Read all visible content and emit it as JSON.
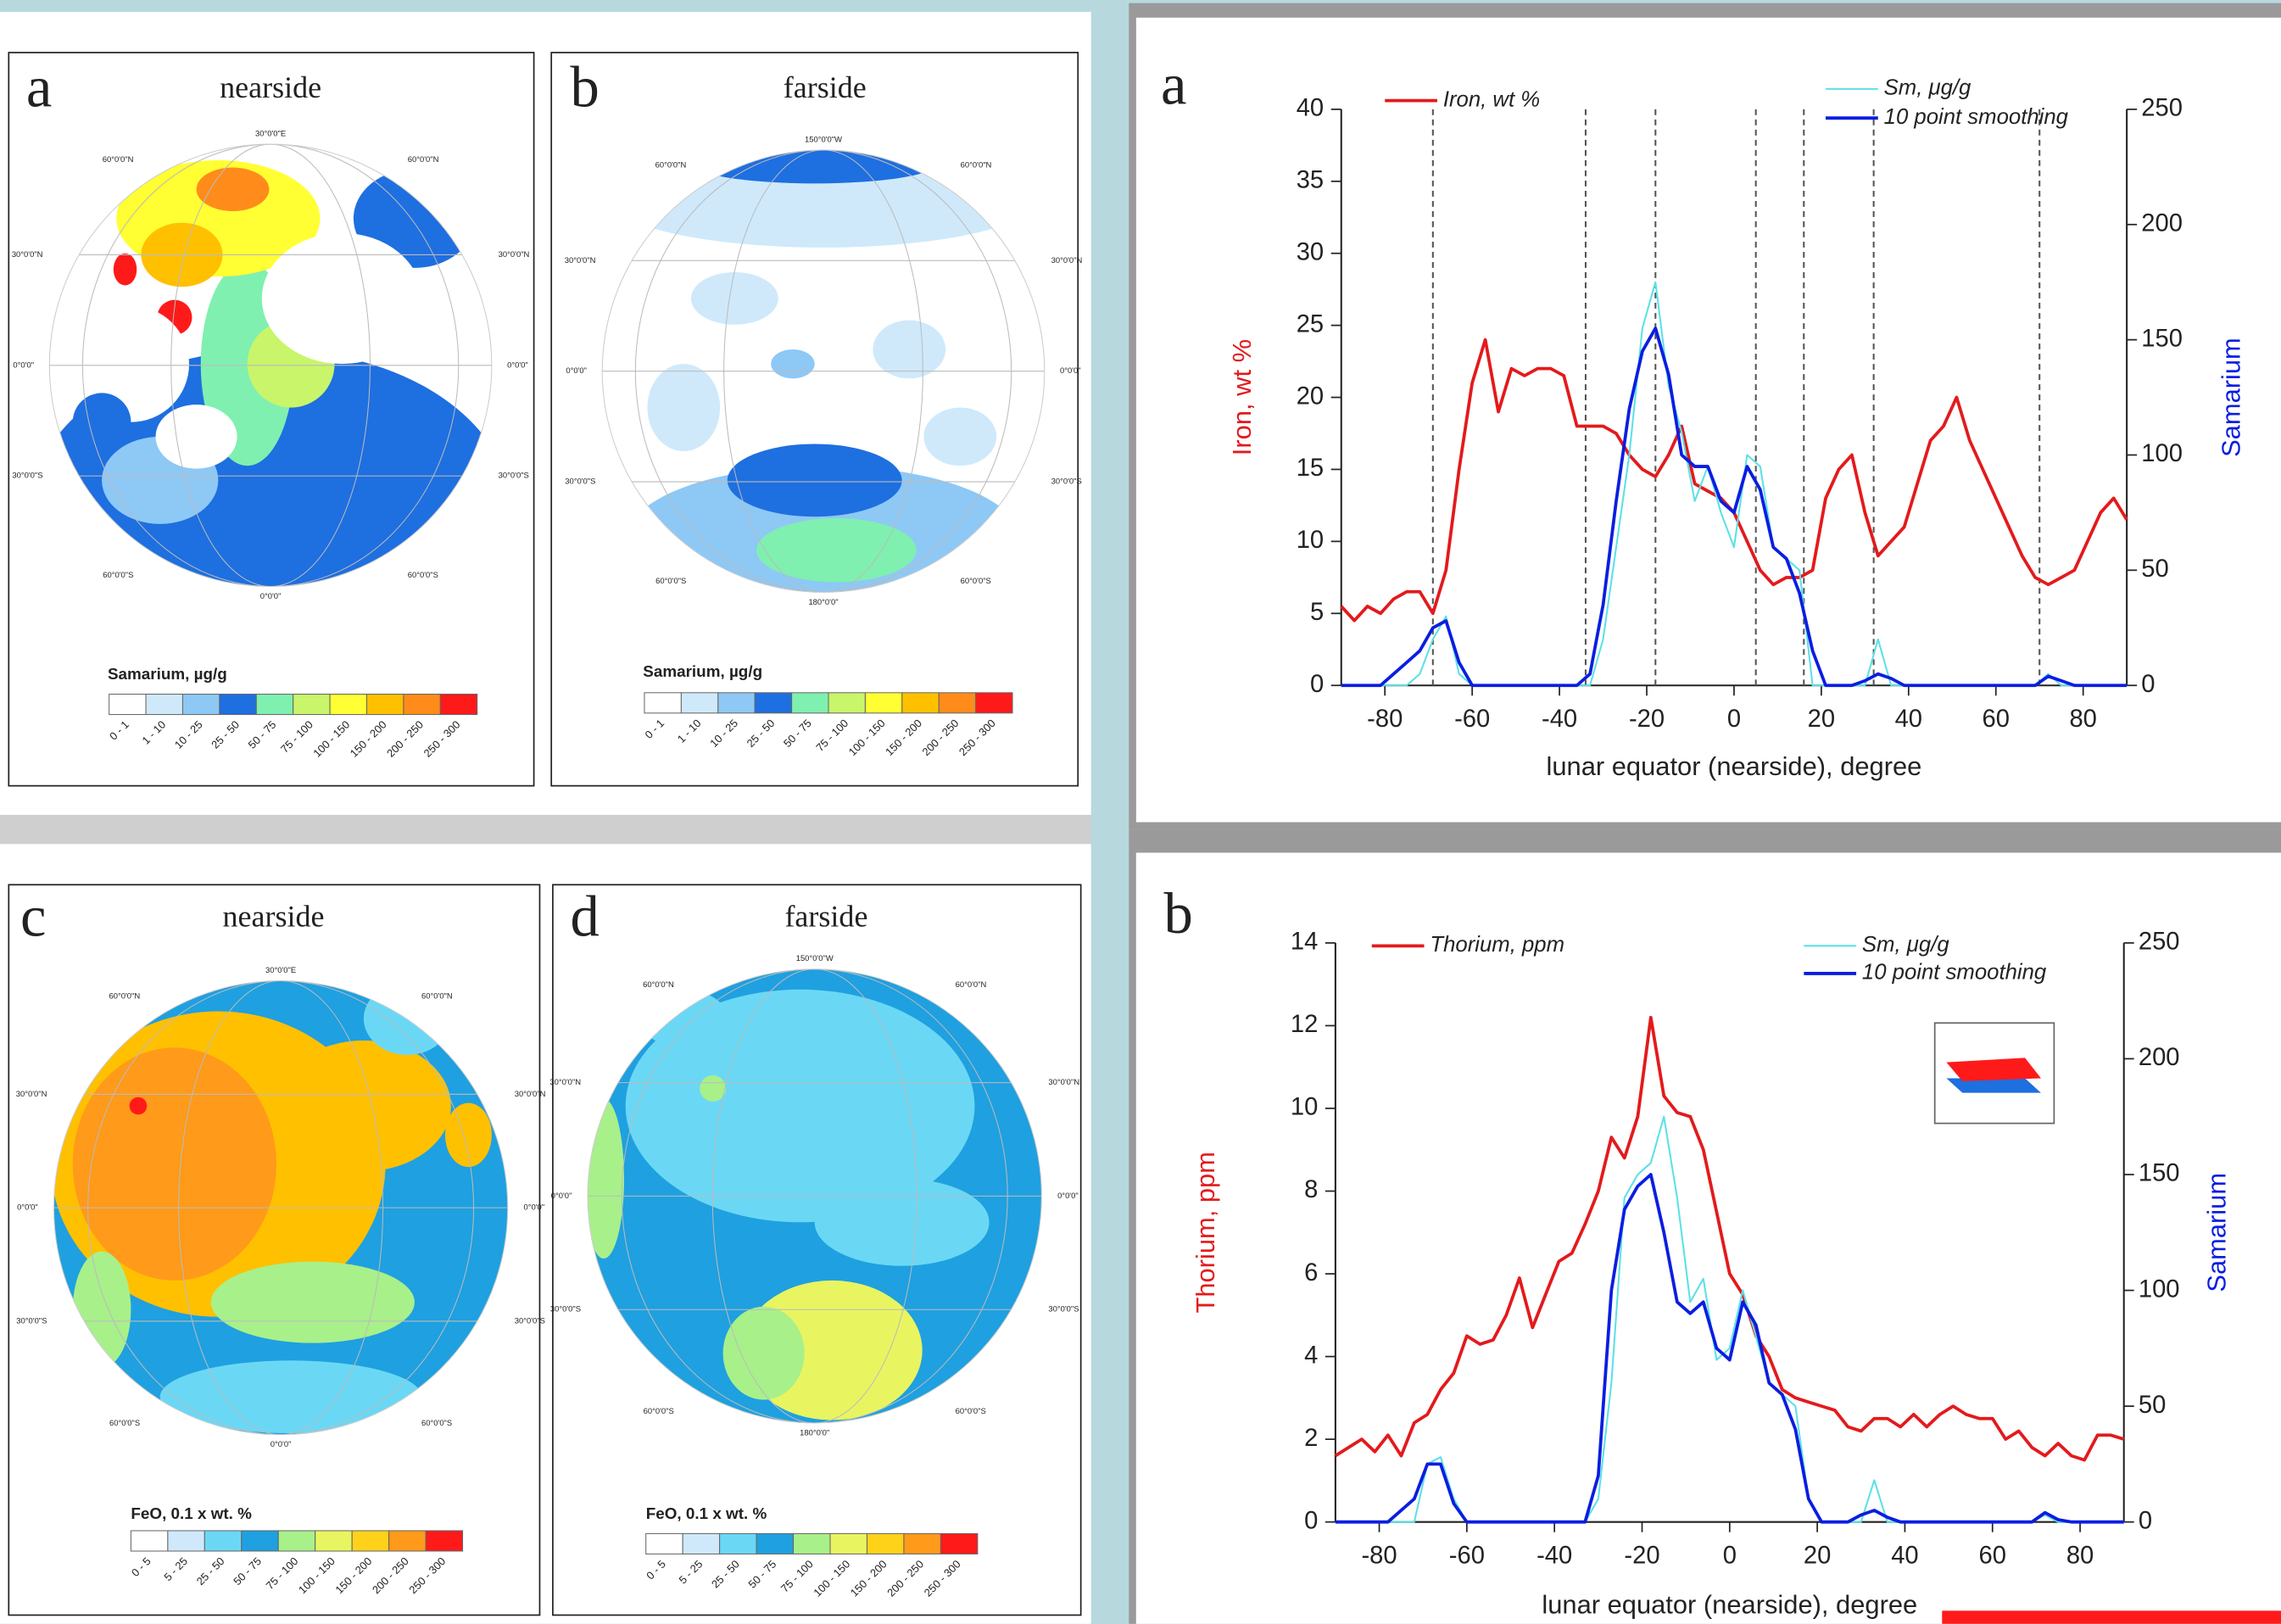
{
  "maps": [
    {
      "letter": "a",
      "title": "nearside",
      "legend_title": "Samarium, µg/g",
      "legend_labels": [
        "0 - 1",
        "1 - 10",
        "10 - 25",
        "25 - 50",
        "50 - 75",
        "75 - 100",
        "100 - 150",
        "150 - 200",
        "200 - 250",
        "250 - 300"
      ],
      "legend_colors": [
        "#ffffff",
        "#cfe9fb",
        "#8ec8f5",
        "#1e6fe0",
        "#7ff0b0",
        "#c8f56a",
        "#ffff33",
        "#ffc000",
        "#ff8c1a",
        "#ff1a1a"
      ],
      "grid_labels": [
        "30°0'0\"E",
        "60°0'0\"N",
        "60°0'0\"N",
        "30°0'0\"N",
        "30°0'0\"N",
        "0°0'0\"",
        "0°0'0\"",
        "30°0'0\"S",
        "30°0'0\"S",
        "60°0'0\"S",
        "60°0'0\"S",
        "0°0'0\""
      ]
    },
    {
      "letter": "b",
      "title": "farside",
      "legend_title": "Samarium, µg/g",
      "legend_labels": [
        "0 - 1",
        "1 - 10",
        "10 - 25",
        "25 - 50",
        "50 - 75",
        "75 - 100",
        "100 - 150",
        "150 - 200",
        "200 - 250",
        "250 - 300"
      ],
      "legend_colors": [
        "#ffffff",
        "#cfe9fb",
        "#8ec8f5",
        "#1e6fe0",
        "#7ff0b0",
        "#c8f56a",
        "#ffff33",
        "#ffc000",
        "#ff8c1a",
        "#ff1a1a"
      ],
      "grid_labels": [
        "150°0'0\"W",
        "60°0'0\"N",
        "60°0'0\"N",
        "30°0'0\"N",
        "30°0'0\"N",
        "0°0'0\"",
        "0°0'0\"",
        "30°0'0\"S",
        "30°0'0\"S",
        "60°0'0\"S",
        "60°0'0\"S",
        "180°0'0\""
      ]
    },
    {
      "letter": "c",
      "title": "nearside",
      "legend_title": "FeO, 0.1 x wt. %",
      "legend_labels": [
        "0 - 5",
        "5 - 25",
        "25 - 50",
        "50 - 75",
        "75 - 100",
        "100 - 150",
        "150 - 200",
        "200 - 250",
        "250 - 300"
      ],
      "legend_colors": [
        "#ffffff",
        "#cfe9fb",
        "#6ad8f5",
        "#1fa0e0",
        "#a8f08a",
        "#e8f560",
        "#ffd21a",
        "#ff9a1a",
        "#ff1a1a"
      ],
      "grid_labels": [
        "30°0'0\"E",
        "60°0'0\"N",
        "60°0'0\"N",
        "30°0'0\"N",
        "30°0'0\"N",
        "0°0'0\"",
        "0°0'0\"",
        "30°0'0\"S",
        "30°0'0\"S",
        "60°0'0\"S",
        "60°0'0\"S",
        "0°0'0\""
      ]
    },
    {
      "letter": "d",
      "title": "farside",
      "legend_title": "FeO, 0.1 x wt. %",
      "legend_labels": [
        "0 - 5",
        "5 - 25",
        "25 - 50",
        "50 - 75",
        "75 - 100",
        "100 - 150",
        "150 - 200",
        "200 - 250",
        "250 - 300"
      ],
      "legend_colors": [
        "#ffffff",
        "#cfe9fb",
        "#6ad8f5",
        "#1fa0e0",
        "#a8f08a",
        "#e8f560",
        "#ffd21a",
        "#ff9a1a",
        "#ff1a1a"
      ],
      "grid_labels": [
        "150°0'0\"W",
        "60°0'0\"N",
        "60°0'0\"N",
        "30°0'0\"N",
        "30°0'0\"N",
        "0°0'0\"",
        "0°0'0\"",
        "30°0'0\"S",
        "30°0'0\"S",
        "60°0'0\"S",
        "60°0'0\"S",
        "180°0'0\""
      ]
    }
  ],
  "chart_data": [
    {
      "type": "line",
      "panel_label": "a",
      "x_label": "lunar equator (nearside), degree",
      "y_label": "Iron, wt %",
      "y2_label": "Samarium",
      "xlim": [
        -90,
        90
      ],
      "xticks": [
        -80,
        -60,
        -40,
        -20,
        0,
        20,
        40,
        60,
        80
      ],
      "ylim": [
        0,
        40
      ],
      "yticks": [
        0,
        5,
        10,
        15,
        20,
        25,
        30,
        35,
        40
      ],
      "y2lim": [
        0,
        250
      ],
      "y2ticks": [
        0,
        50,
        100,
        150,
        200,
        250
      ],
      "vlines": [
        -69,
        -34,
        -18,
        5,
        16,
        32,
        70
      ],
      "x": [
        -90,
        -87,
        -84,
        -81,
        -78,
        -75,
        -72,
        -69,
        -66,
        -63,
        -60,
        -57,
        -54,
        -51,
        -48,
        -45,
        -42,
        -39,
        -36,
        -33,
        -30,
        -27,
        -24,
        -21,
        -18,
        -15,
        -12,
        -9,
        -6,
        -3,
        0,
        3,
        6,
        9,
        12,
        15,
        18,
        21,
        24,
        27,
        30,
        33,
        36,
        39,
        42,
        45,
        48,
        51,
        54,
        57,
        60,
        63,
        66,
        69,
        72,
        75,
        78,
        81,
        84,
        87,
        90
      ],
      "series": [
        {
          "name": "Iron, wt %",
          "color": "#e31a1c",
          "axis": "y",
          "values": [
            5.5,
            4.5,
            5.5,
            5,
            6,
            6.5,
            6.5,
            5,
            8,
            15,
            21,
            24,
            19,
            22,
            21.5,
            22,
            22,
            21.5,
            18,
            18,
            18,
            17.5,
            16,
            15,
            14.5,
            16,
            18,
            14,
            13.5,
            13,
            12,
            10,
            8,
            7,
            7.5,
            7.5,
            8,
            13,
            15,
            16,
            12,
            9,
            10,
            11,
            14,
            17,
            18,
            20,
            17,
            15,
            13,
            11,
            9,
            7.5,
            7,
            7.5,
            8,
            10,
            12,
            13,
            11.5
          ]
        },
        {
          "name": "Sm, μg/g",
          "color": "#5de0e6",
          "axis": "y2",
          "values": [
            0,
            0,
            0,
            0,
            0,
            0,
            5,
            20,
            30,
            5,
            0,
            0,
            0,
            0,
            0,
            0,
            0,
            0,
            0,
            0,
            20,
            60,
            100,
            155,
            175,
            130,
            110,
            80,
            95,
            75,
            60,
            100,
            95,
            60,
            55,
            50,
            0,
            0,
            0,
            0,
            0,
            20,
            0,
            0,
            0,
            0,
            0,
            0,
            0,
            0,
            0,
            0,
            0,
            0,
            5,
            0,
            0,
            0,
            0,
            0,
            0
          ]
        },
        {
          "name": "10 point smoothing",
          "color": "#0a1ee0",
          "axis": "y2",
          "values": [
            0,
            0,
            0,
            0,
            5,
            10,
            15,
            25,
            28,
            10,
            0,
            0,
            0,
            0,
            0,
            0,
            0,
            0,
            0,
            5,
            35,
            80,
            120,
            145,
            155,
            135,
            100,
            95,
            95,
            80,
            75,
            95,
            85,
            60,
            55,
            40,
            15,
            0,
            0,
            0,
            2,
            5,
            3,
            0,
            0,
            0,
            0,
            0,
            0,
            0,
            0,
            0,
            0,
            0,
            4,
            2,
            0,
            0,
            0,
            0,
            0
          ]
        }
      ]
    },
    {
      "type": "line",
      "panel_label": "b",
      "x_label": "lunar equator (nearside), degree",
      "y_label": "Thorium, ppm",
      "y2_label": "Samarium",
      "xlim": [
        -90,
        90
      ],
      "xticks": [
        -80,
        -60,
        -40,
        -20,
        0,
        20,
        40,
        60,
        80
      ],
      "ylim": [
        0,
        14
      ],
      "yticks": [
        0,
        2,
        4,
        6,
        8,
        10,
        12,
        14
      ],
      "y2lim": [
        0,
        250
      ],
      "y2ticks": [
        0,
        50,
        100,
        150,
        200,
        250
      ],
      "x": [
        -90,
        -87,
        -84,
        -81,
        -78,
        -75,
        -72,
        -69,
        -66,
        -63,
        -60,
        -57,
        -54,
        -51,
        -48,
        -45,
        -42,
        -39,
        -36,
        -33,
        -30,
        -27,
        -24,
        -21,
        -18,
        -15,
        -12,
        -9,
        -6,
        -3,
        0,
        3,
        6,
        9,
        12,
        15,
        18,
        21,
        24,
        27,
        30,
        33,
        36,
        39,
        42,
        45,
        48,
        51,
        54,
        57,
        60,
        63,
        66,
        69,
        72,
        75,
        78,
        81,
        84,
        87,
        90
      ],
      "series": [
        {
          "name": "Thorium, ppm",
          "color": "#e31a1c",
          "axis": "y",
          "values": [
            1.6,
            1.8,
            2,
            1.7,
            2.1,
            1.6,
            2.4,
            2.6,
            3.2,
            3.6,
            4.5,
            4.3,
            4.4,
            5,
            5.9,
            4.7,
            5.5,
            6.3,
            6.5,
            7.2,
            8,
            9.3,
            8.8,
            9.8,
            12.2,
            10.3,
            9.9,
            9.8,
            9,
            7.5,
            6,
            5.5,
            4.5,
            4,
            3.2,
            3,
            2.9,
            2.8,
            2.7,
            2.3,
            2.2,
            2.5,
            2.5,
            2.3,
            2.6,
            2.3,
            2.6,
            2.8,
            2.6,
            2.5,
            2.5,
            2,
            2.2,
            1.8,
            1.6,
            1.9,
            1.6,
            1.5,
            2.1,
            2.1,
            2
          ]
        },
        {
          "name": "Sm, μg/g",
          "color": "#5de0e6",
          "axis": "y2",
          "values": [
            0,
            0,
            0,
            0,
            0,
            0,
            0,
            25,
            28,
            10,
            0,
            0,
            0,
            0,
            0,
            0,
            0,
            0,
            0,
            0,
            10,
            60,
            140,
            150,
            155,
            175,
            140,
            95,
            105,
            70,
            75,
            100,
            80,
            60,
            55,
            50,
            10,
            0,
            0,
            0,
            0,
            18,
            0,
            0,
            0,
            0,
            0,
            0,
            0,
            0,
            0,
            0,
            0,
            0,
            3,
            0,
            0,
            0,
            0,
            0,
            0
          ]
        },
        {
          "name": "10 point smoothing",
          "color": "#0a1ee0",
          "axis": "y2",
          "values": [
            0,
            0,
            0,
            0,
            0,
            5,
            10,
            25,
            25,
            8,
            0,
            0,
            0,
            0,
            0,
            0,
            0,
            0,
            0,
            0,
            20,
            100,
            135,
            145,
            150,
            125,
            95,
            90,
            95,
            75,
            70,
            95,
            85,
            60,
            55,
            40,
            10,
            0,
            0,
            0,
            3,
            5,
            2,
            0,
            0,
            0,
            0,
            0,
            0,
            0,
            0,
            0,
            0,
            0,
            4,
            1,
            0,
            0,
            0,
            0,
            0
          ]
        }
      ]
    }
  ]
}
